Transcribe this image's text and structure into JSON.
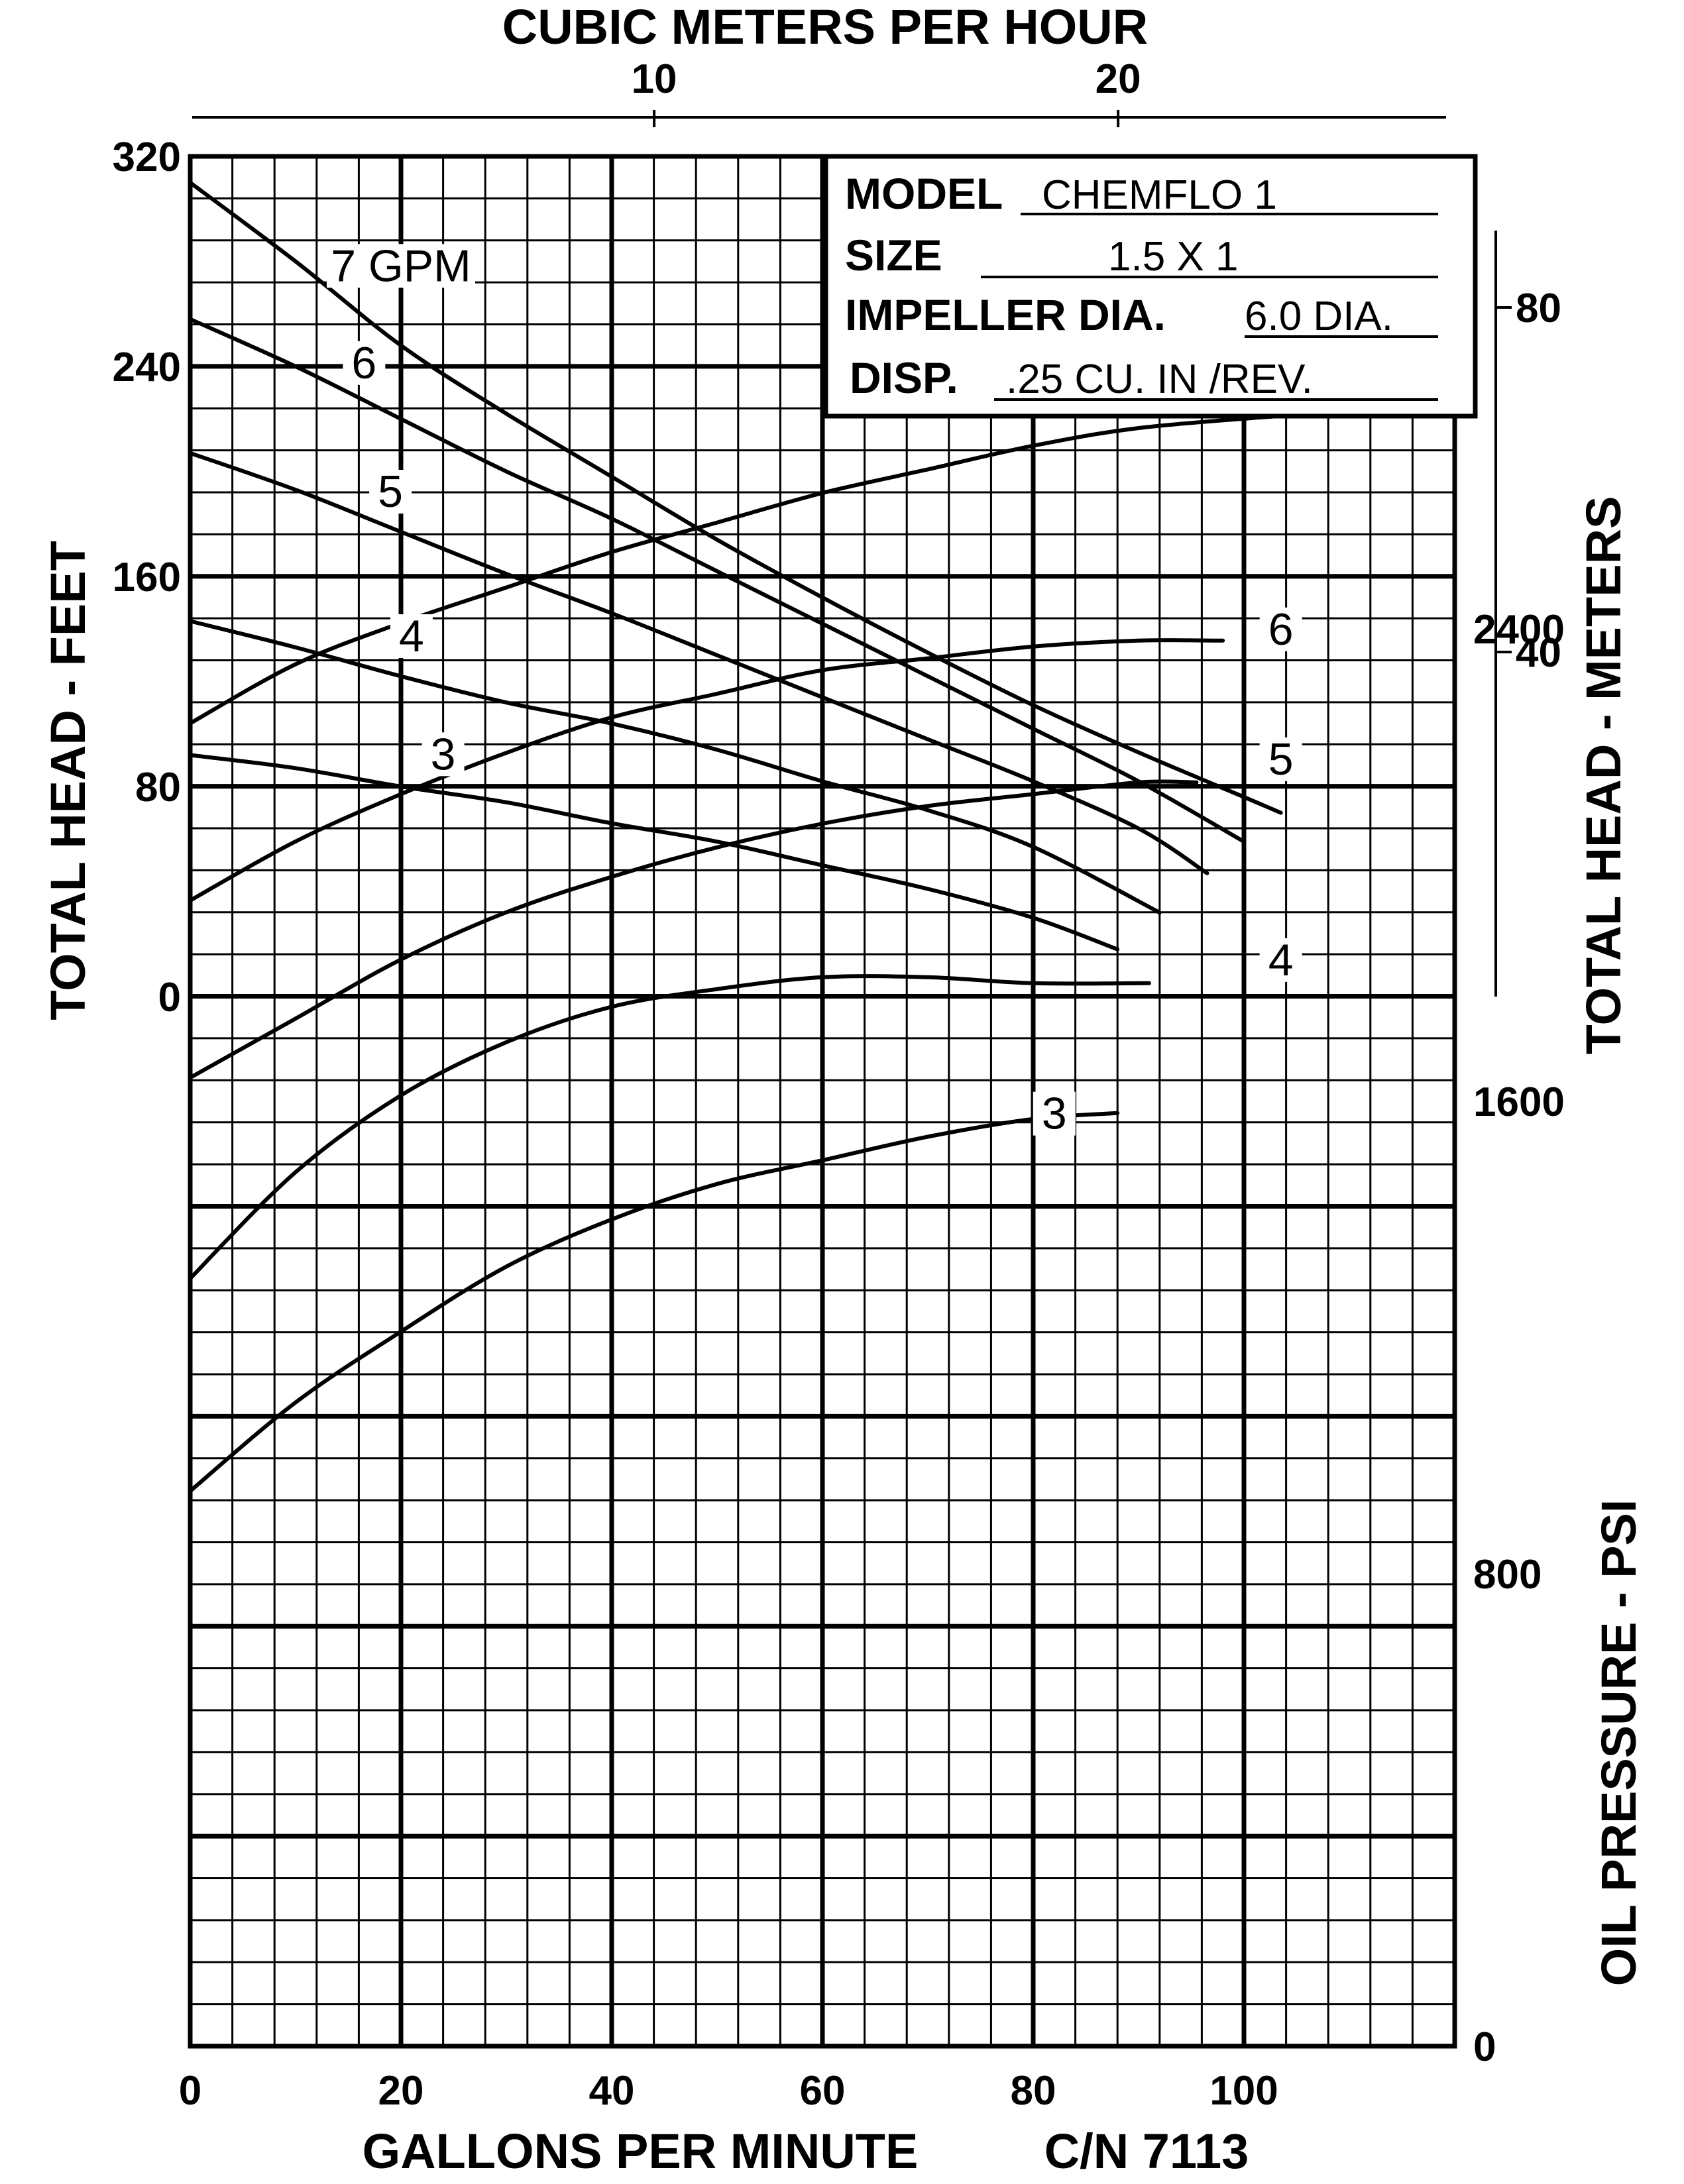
{
  "chart_data": {
    "type": "line",
    "top_axis": {
      "label": "CUBIC METERS PER HOUR",
      "ticks": [
        {
          "v": 10,
          "label": "10"
        },
        {
          "v": 20,
          "label": "20"
        }
      ]
    },
    "x_axis": {
      "label": "GALLONS PER MINUTE",
      "note": "C/N 7113",
      "range": [
        0,
        120
      ],
      "ticks": [
        {
          "v": 0,
          "label": "0"
        },
        {
          "v": 20,
          "label": "20"
        },
        {
          "v": 40,
          "label": "40"
        },
        {
          "v": 60,
          "label": "60"
        },
        {
          "v": 80,
          "label": "80"
        },
        {
          "v": 100,
          "label": "100"
        }
      ]
    },
    "head_axis": {
      "label": "TOTAL HEAD - FEET",
      "range": [
        0,
        320
      ],
      "ticks": [
        {
          "v": 0,
          "label": "0"
        },
        {
          "v": 80,
          "label": "80"
        },
        {
          "v": 160,
          "label": "160"
        },
        {
          "v": 240,
          "label": "240"
        },
        {
          "v": 320,
          "label": "320"
        }
      ]
    },
    "head_meters_axis": {
      "label": "TOTAL HEAD - METERS",
      "ticks": [
        {
          "v": 40,
          "label": "40"
        },
        {
          "v": 80,
          "label": "80"
        }
      ]
    },
    "pressure_axis": {
      "label": "OIL PRESSURE - PSI",
      "range": [
        0,
        3200
      ],
      "ticks": [
        {
          "v": 0,
          "label": "0"
        },
        {
          "v": 800,
          "label": "800"
        },
        {
          "v": 1600,
          "label": "1600"
        },
        {
          "v": 2400,
          "label": "2400"
        }
      ]
    },
    "info_box": {
      "model_label": "MODEL",
      "model": "CHEMFLO 1",
      "size_label": "SIZE",
      "size": "1.5 X 1",
      "impeller_label": "IMPELLER DIA.",
      "impeller": "6.0 DIA.",
      "disp_label": "DISP.",
      "disp": ".25 CU. IN /REV."
    },
    "head_series": [
      {
        "name": "7 GPM",
        "label_at": [
          20,
          274
        ],
        "x": [
          0,
          10,
          20,
          30,
          40,
          50,
          60,
          70,
          80,
          90,
          100,
          103.5
        ],
        "y": [
          310,
          280,
          248,
          222,
          198,
          174,
          152,
          131,
          111,
          93,
          76,
          70
        ]
      },
      {
        "name": "6",
        "label_at": [
          16.5,
          237
        ],
        "x": [
          0,
          10,
          20,
          30,
          40,
          50,
          60,
          70,
          80,
          90,
          100
        ],
        "y": [
          258,
          240,
          220,
          200,
          182,
          162,
          142,
          122,
          102,
          82,
          59
        ]
      },
      {
        "name": "5",
        "label_at": [
          19,
          188
        ],
        "x": [
          0,
          10,
          20,
          30,
          40,
          50,
          60,
          70,
          80,
          90,
          96.5
        ],
        "y": [
          207,
          193,
          177,
          161,
          146,
          130,
          114,
          98,
          82,
          64,
          47
        ]
      },
      {
        "name": "4",
        "label_at": [
          21,
          133
        ],
        "x": [
          0,
          10,
          20,
          30,
          40,
          50,
          60,
          70,
          80,
          92
        ],
        "y": [
          143,
          133,
          122,
          112,
          104,
          94,
          82,
          71,
          57,
          32
        ]
      },
      {
        "name": "3",
        "label_at": [
          24,
          88
        ],
        "x": [
          0,
          10,
          20,
          30,
          40,
          50,
          60,
          70,
          80,
          88
        ],
        "y": [
          92,
          87,
          80,
          74,
          66,
          59,
          50,
          41,
          30,
          18
        ]
      }
    ],
    "pressure_series": [
      {
        "name": "7 GPM",
        "label_at": [
          91,
          2815
        ],
        "x": [
          0,
          10,
          20,
          30,
          40,
          50,
          60,
          70,
          80,
          90,
          103
        ],
        "y": [
          2240,
          2340,
          2410,
          2470,
          2530,
          2580,
          2630,
          2670,
          2710,
          2740,
          2760
        ]
      },
      {
        "name": "6",
        "label_at": [
          103.5,
          2380
        ],
        "x": [
          0,
          10,
          20,
          30,
          40,
          50,
          60,
          70,
          80,
          90,
          98
        ],
        "y": [
          1940,
          2040,
          2120,
          2190,
          2250,
          2290,
          2330,
          2350,
          2370,
          2380,
          2380
        ]
      },
      {
        "name": "5",
        "label_at": [
          103.5,
          2160
        ],
        "x": [
          0,
          10,
          20,
          30,
          40,
          50,
          60,
          70,
          80,
          90,
          95.5
        ],
        "y": [
          1640,
          1740,
          1840,
          1920,
          1980,
          2030,
          2070,
          2100,
          2120,
          2140,
          2140
        ]
      },
      {
        "name": "4",
        "label_at": [
          103.5,
          1820
        ],
        "x": [
          0,
          10,
          20,
          30,
          40,
          50,
          60,
          70,
          80,
          91
        ],
        "y": [
          1300,
          1480,
          1610,
          1700,
          1760,
          1790,
          1810,
          1810,
          1800,
          1800
        ]
      },
      {
        "name": "3",
        "label_at": [
          82,
          1560
        ],
        "x": [
          0,
          10,
          20,
          30,
          40,
          50,
          60,
          70,
          80,
          88
        ],
        "y": [
          940,
          1090,
          1210,
          1320,
          1400,
          1460,
          1500,
          1540,
          1570,
          1580
        ]
      }
    ]
  }
}
